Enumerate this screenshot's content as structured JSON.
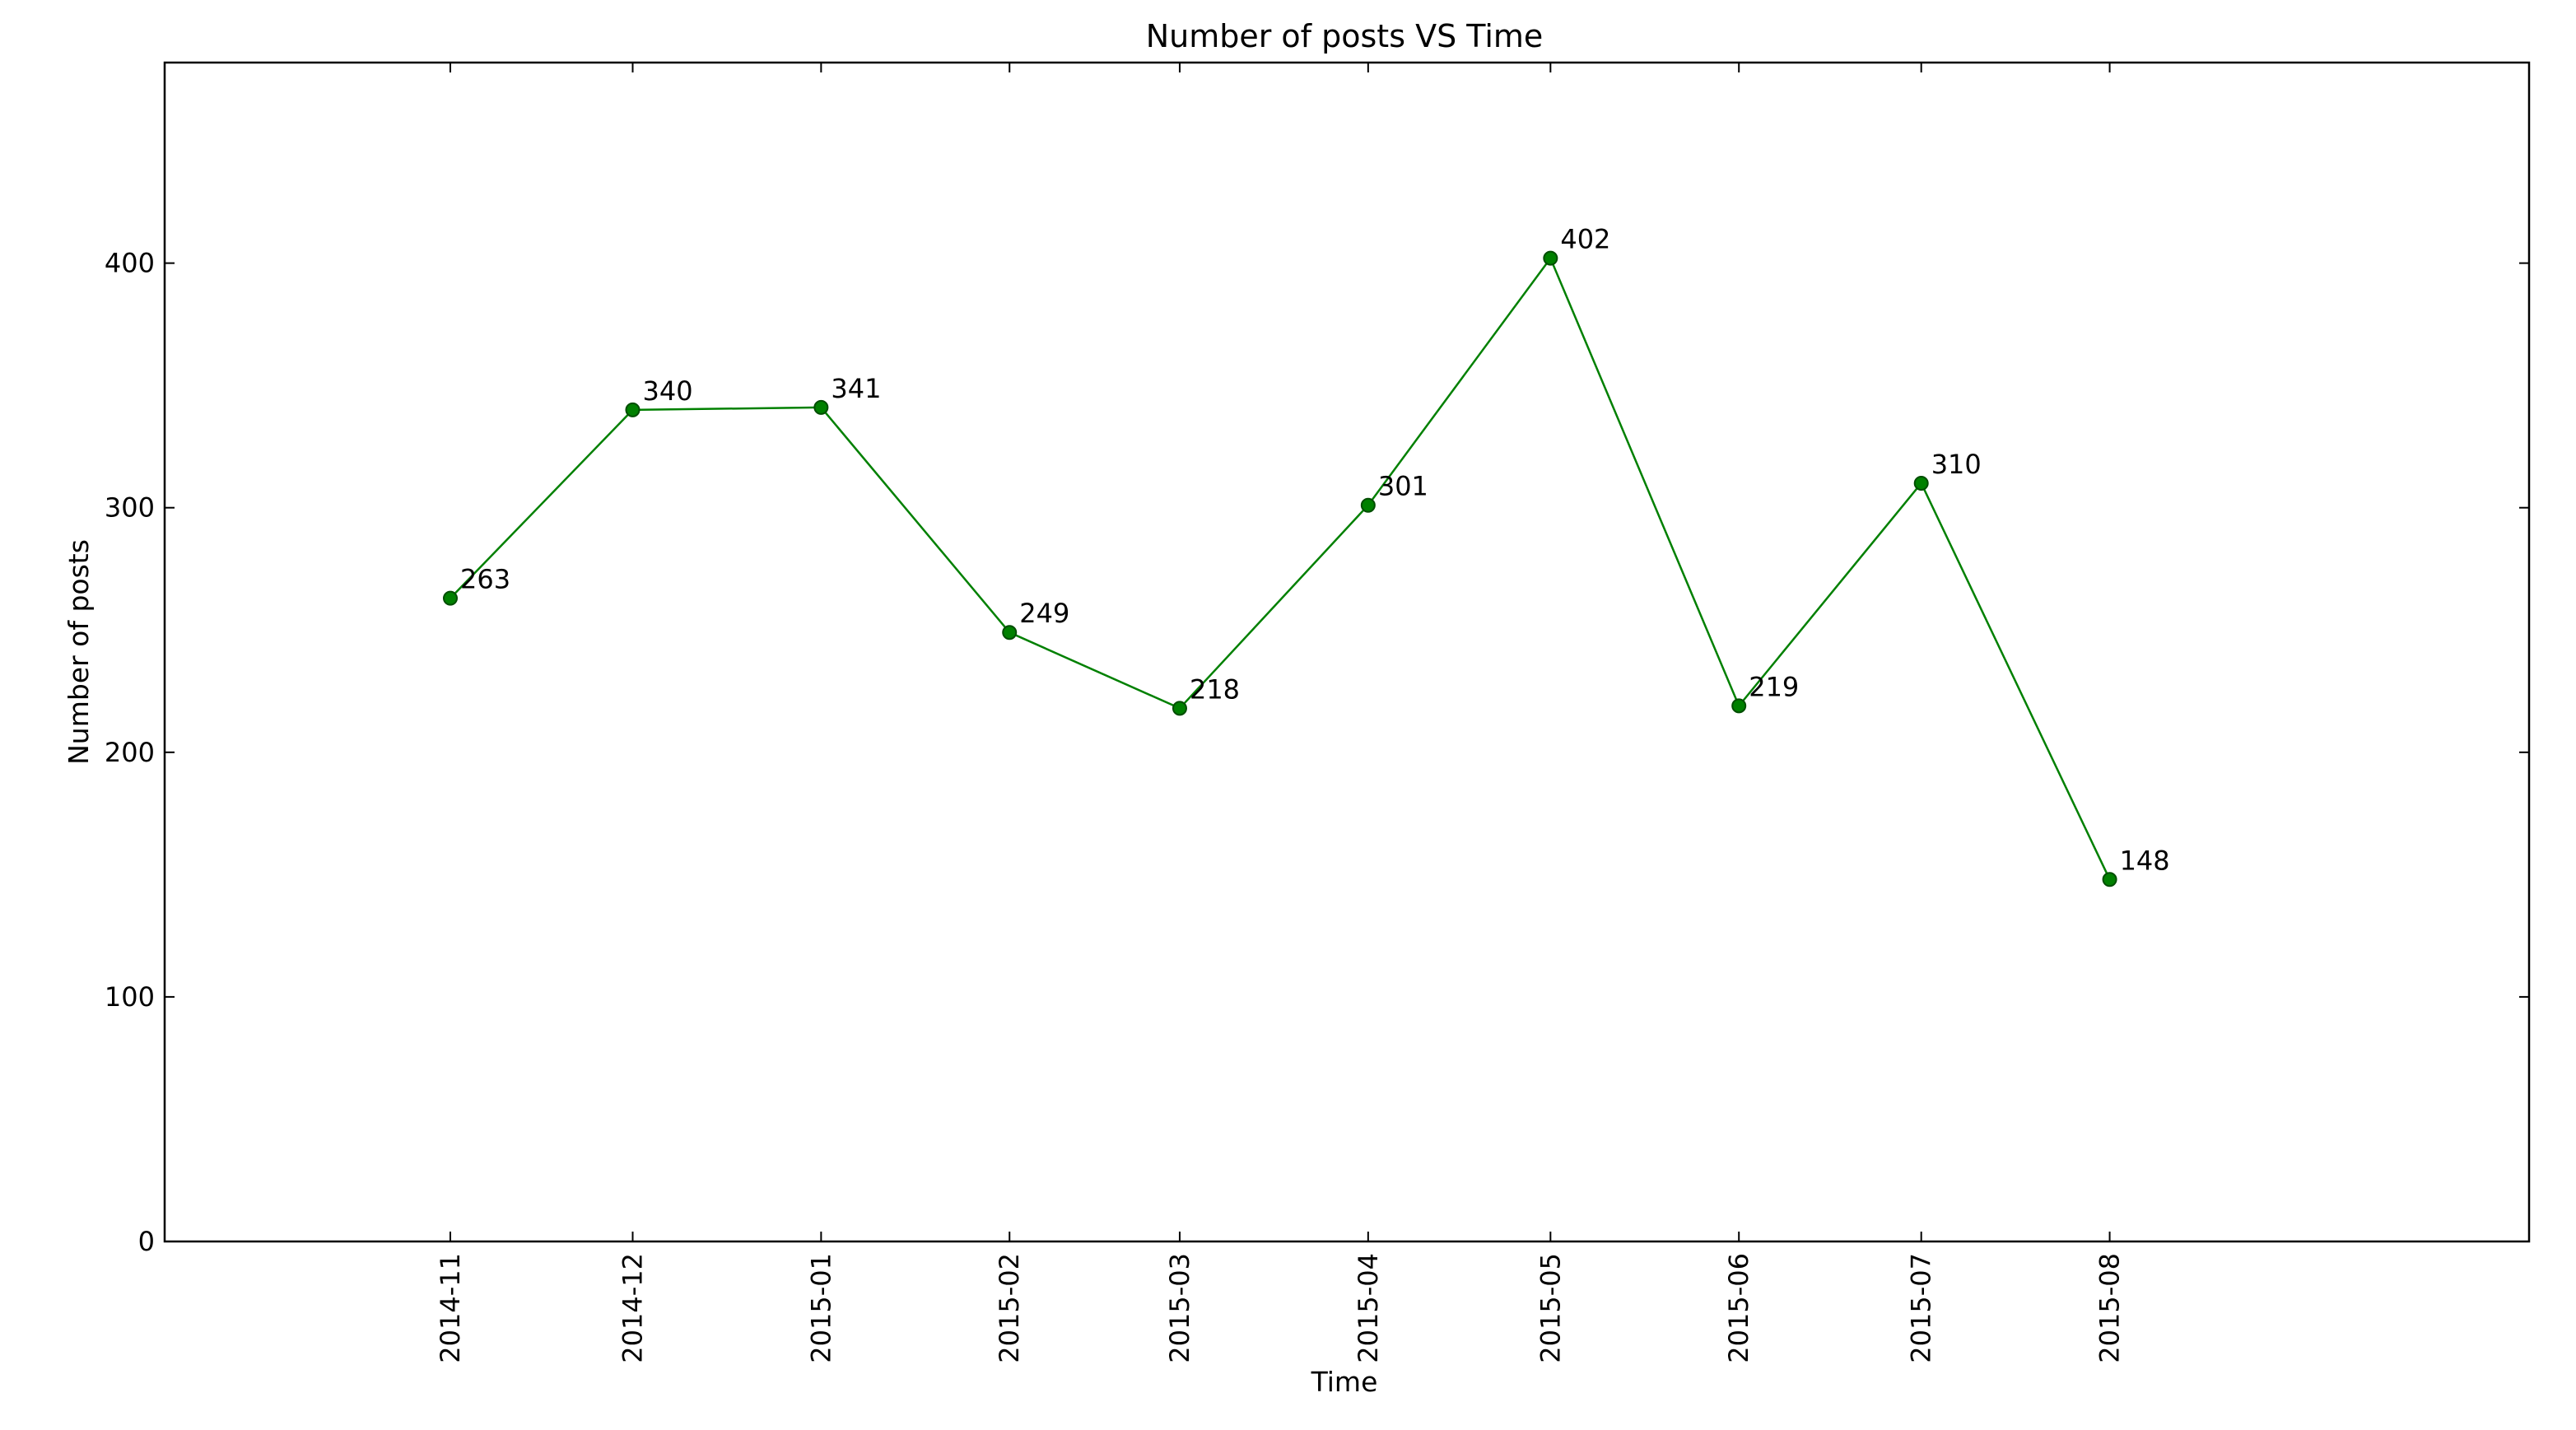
{
  "chart_data": {
    "type": "line",
    "title": "Number of posts VS Time",
    "xlabel": "Time",
    "ylabel": "Number of posts",
    "categories": [
      "2014-11",
      "2014-12",
      "2015-01",
      "2015-02",
      "2015-03",
      "2015-04",
      "2015-05",
      "2015-06",
      "2015-07",
      "2015-08"
    ],
    "x": [
      "2014-11-01",
      "2014-12-01",
      "2015-01-01",
      "2015-02-01",
      "2015-03-01",
      "2015-04-01",
      "2015-05-01",
      "2015-06-01",
      "2015-07-01",
      "2015-08-01"
    ],
    "xlim": [
      "2014-09-15",
      "2015-10-09"
    ],
    "values": [
      263,
      340,
      341,
      249,
      218,
      301,
      402,
      219,
      310,
      148
    ],
    "data_labels": [
      "263",
      "340",
      "341",
      "249",
      "218",
      "301",
      "402",
      "219",
      "310",
      "148"
    ],
    "ylim": [
      0,
      482
    ],
    "yticks": [
      0,
      100,
      200,
      300,
      400
    ],
    "grid": false,
    "legend": "none",
    "colors": {
      "line": "#008000",
      "marker_edge": "#004d00",
      "axes": "#000000"
    }
  }
}
